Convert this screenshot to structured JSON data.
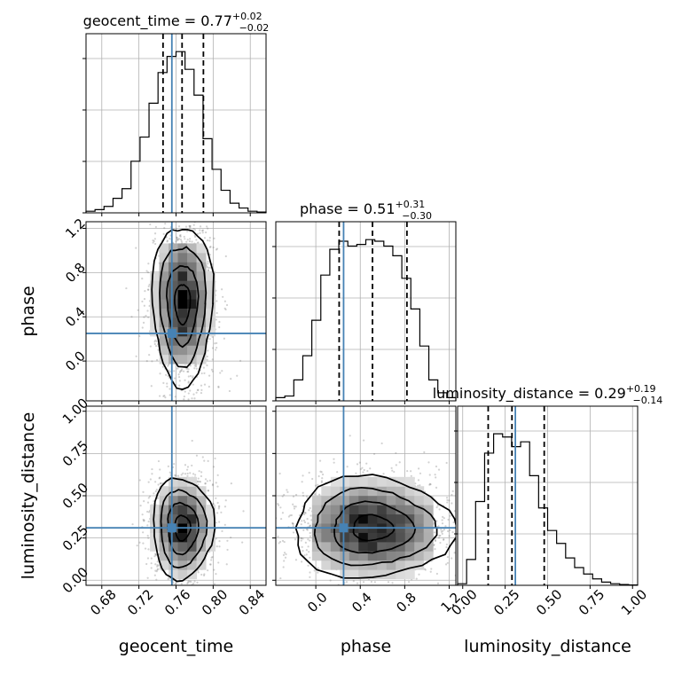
{
  "chart_data": {
    "type": "corner",
    "parameters": [
      "geocent_time",
      "phase",
      "luminosity_distance"
    ],
    "titles": [
      {
        "param": "geocent_time",
        "label": "geocent_time",
        "median": "0.77",
        "plus": "+0.02",
        "minus": "−0.02"
      },
      {
        "param": "phase",
        "label": "phase",
        "median": "0.51",
        "plus": "+0.31",
        "minus": "−0.30"
      },
      {
        "param": "luminosity_distance",
        "label": "luminosity_distance",
        "median": "0.29",
        "plus": "+0.19",
        "minus": "−0.14"
      }
    ],
    "axes": {
      "geocent_time": {
        "range": [
          0.663,
          0.857
        ],
        "ticks": [
          "0.68",
          "0.72",
          "0.76",
          "0.80",
          "0.84"
        ],
        "tick_values": [
          0.68,
          0.72,
          0.76,
          0.8,
          0.84
        ]
      },
      "phase": {
        "range": [
          -0.36,
          1.26
        ],
        "ticks": [
          "0.0",
          "0.4",
          "0.8",
          "1.2"
        ],
        "tick_values": [
          0.0,
          0.4,
          0.8,
          1.2
        ]
      },
      "luminosity_distance": {
        "range": [
          -0.03,
          1.03
        ],
        "ticks": [
          "0.00",
          "0.25",
          "0.50",
          "0.75",
          "1.00"
        ],
        "tick_values": [
          0.0,
          0.25,
          0.5,
          0.75,
          1.0
        ]
      }
    },
    "truths": {
      "geocent_time": 0.7555,
      "phase": 0.25,
      "luminosity_distance": 0.31
    },
    "quantiles": {
      "geocent_time": [
        0.746,
        0.7665,
        0.7895
      ],
      "phase": [
        0.21,
        0.51,
        0.82
      ],
      "luminosity_distance": [
        0.15,
        0.29,
        0.48
      ]
    },
    "histograms": {
      "geocent_time": {
        "edges": [
          0.663,
          0.857
        ],
        "counts": [
          0.01,
          0.02,
          0.04,
          0.09,
          0.15,
          0.32,
          0.47,
          0.68,
          0.87,
          0.97,
          1.0,
          0.89,
          0.73,
          0.46,
          0.27,
          0.14,
          0.06,
          0.03,
          0.01,
          0.005
        ]
      },
      "phase": {
        "edges": [
          -0.36,
          1.26
        ],
        "counts": [
          0.02,
          0.03,
          0.13,
          0.28,
          0.5,
          0.78,
          0.94,
          0.99,
          0.96,
          0.97,
          1.0,
          0.99,
          0.96,
          0.9,
          0.76,
          0.57,
          0.34,
          0.13,
          0.05,
          0.02
        ]
      },
      "luminosity_distance": {
        "edges": [
          -0.03,
          1.03
        ],
        "counts": [
          0.01,
          0.16,
          0.52,
          0.82,
          0.94,
          0.92,
          0.86,
          0.89,
          0.68,
          0.48,
          0.34,
          0.26,
          0.17,
          0.11,
          0.07,
          0.04,
          0.02,
          0.01,
          0.005,
          0.002
        ]
      }
    },
    "pairs": [
      {
        "x": "geocent_time",
        "y": "phase",
        "cx": 0.767,
        "cy": 0.52,
        "sx": 0.0165,
        "sy": 0.36
      },
      {
        "x": "geocent_time",
        "y": "luminosity_distance",
        "cx": 0.767,
        "cy": 0.31,
        "sx": 0.0165,
        "sy": 0.15
      },
      {
        "x": "phase",
        "y": "luminosity_distance",
        "cx": 0.51,
        "cy": 0.31,
        "sx": 0.36,
        "sy": 0.15
      }
    ],
    "colors": {
      "truth": "#4682b4",
      "line": "#000000",
      "grid": "#b0b0b0",
      "scatter": "#7f7f7f"
    },
    "grid": true
  }
}
